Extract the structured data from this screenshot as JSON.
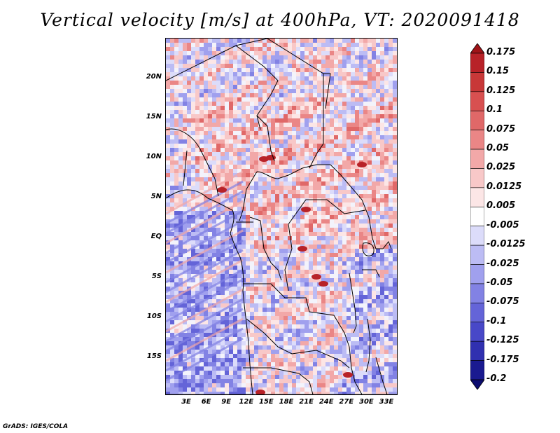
{
  "title": "Vertical velocity [m/s] at 400hPa, VT: 2020091418",
  "credit": "GrADS: IGES/COLA",
  "map": {
    "lat_labels": [
      "20N",
      "15N",
      "10N",
      "5N",
      "EQ",
      "5S",
      "10S",
      "15S"
    ],
    "lon_labels": [
      "3E",
      "6E",
      "9E",
      "12E",
      "15E",
      "18E",
      "21E",
      "24E",
      "27E",
      "30E",
      "33E"
    ]
  },
  "colorbar": {
    "labels": [
      "0.175",
      "0.15",
      "0.125",
      "0.1",
      "0.075",
      "0.05",
      "0.025",
      "0.0125",
      "0.005",
      "-0.005",
      "-0.0125",
      "-0.025",
      "-0.05",
      "-0.075",
      "-0.1",
      "-0.125",
      "-0.175",
      "-0.2"
    ],
    "colors": [
      "#a01418",
      "#b82228",
      "#c83838",
      "#d85050",
      "#e06868",
      "#ea8686",
      "#f2a8a8",
      "#f8c8c8",
      "#fce6e6",
      "#ffffff",
      "#dcdcfa",
      "#bcbcf4",
      "#a0a0ee",
      "#8282e4",
      "#6464d8",
      "#4848c8",
      "#3030b0",
      "#1a1a90",
      "#0c0c70"
    ]
  }
}
